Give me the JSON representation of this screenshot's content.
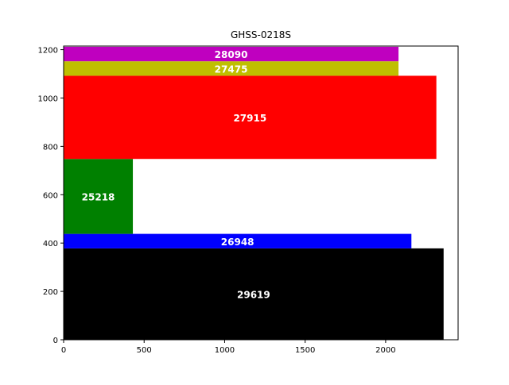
{
  "chart_data": {
    "type": "bar",
    "orientation": "horizontal-stacked-blocks",
    "title": "GHSS-0218S",
    "xlabel": "",
    "ylabel": "",
    "xlim": [
      0,
      2450
    ],
    "ylim": [
      0,
      1215
    ],
    "xticks": [
      0,
      500,
      1000,
      1500,
      2000
    ],
    "yticks": [
      0,
      200,
      400,
      600,
      800,
      1000,
      1200
    ],
    "grid": false,
    "bars": [
      {
        "label": "29619",
        "color": "#000000",
        "y_start": 0,
        "y_end": 378,
        "x_end": 2360
      },
      {
        "label": "26948",
        "color": "#0000ff",
        "y_start": 378,
        "y_end": 438,
        "x_end": 2160
      },
      {
        "label": "25218",
        "color": "#008000",
        "y_start": 438,
        "y_end": 748,
        "x_end": 430
      },
      {
        "label": "27915",
        "color": "#ff0000",
        "y_start": 748,
        "y_end": 1092,
        "x_end": 2315
      },
      {
        "label": "27475",
        "color": "#bfbf00",
        "y_start": 1092,
        "y_end": 1152,
        "x_end": 2080
      },
      {
        "label": "28090",
        "color": "#bf00bf",
        "y_start": 1152,
        "y_end": 1212,
        "x_end": 2080
      }
    ]
  }
}
